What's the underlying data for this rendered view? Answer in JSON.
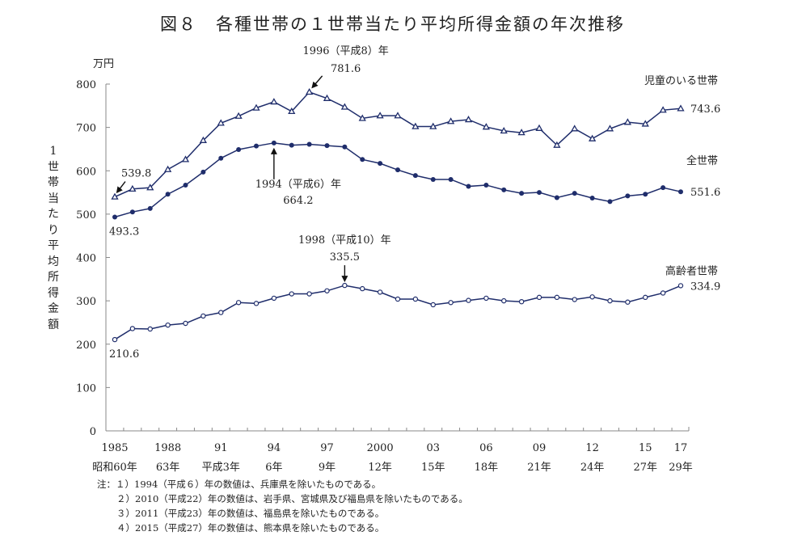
{
  "title": "図８　各種世帯の１世帯当たり平均所得金額の年次推移",
  "chart_data": {
    "type": "line",
    "title": "図８　各種世帯の１世帯当たり平均所得金額の年次推移",
    "ylabel": "１世帯当たり平均所得金額",
    "ylabel_chars": [
      "1",
      "世",
      "帯",
      "当",
      "た",
      "り",
      "平",
      "均",
      "所",
      "得",
      "金",
      "額"
    ],
    "yunit": "万円",
    "xlabel": "",
    "ylim": [
      0,
      800
    ],
    "yticks": [
      0,
      100,
      200,
      300,
      400,
      500,
      600,
      700,
      800
    ],
    "xlim": [
      1985,
      2017
    ],
    "x": [
      1985,
      1986,
      1987,
      1988,
      1989,
      1990,
      1991,
      1992,
      1993,
      1994,
      1995,
      1996,
      1997,
      1998,
      1999,
      2000,
      2001,
      2002,
      2003,
      2004,
      2005,
      2006,
      2007,
      2008,
      2009,
      2010,
      2011,
      2012,
      2013,
      2014,
      2015,
      2016,
      2017
    ],
    "xtick_labels": [
      {
        "year": 1985,
        "western": "1985",
        "japanese": "昭和60年"
      },
      {
        "year": 1988,
        "western": "1988",
        "japanese": "63年"
      },
      {
        "year": 1991,
        "western": "91",
        "japanese": "平成3年"
      },
      {
        "year": 1994,
        "western": "94",
        "japanese": "6年"
      },
      {
        "year": 1997,
        "western": "97",
        "japanese": "9年"
      },
      {
        "year": 2000,
        "western": "2000",
        "japanese": "12年"
      },
      {
        "year": 2003,
        "western": "03",
        "japanese": "15年"
      },
      {
        "year": 2006,
        "western": "06",
        "japanese": "18年"
      },
      {
        "year": 2009,
        "western": "09",
        "japanese": "21年"
      },
      {
        "year": 2012,
        "western": "12",
        "japanese": "24年"
      },
      {
        "year": 2015,
        "western": "15",
        "japanese": "27年"
      },
      {
        "year": 2017,
        "western": "17",
        "japanese": "29年"
      }
    ],
    "grid": false,
    "series": [
      {
        "name": "児童のいる世帯",
        "marker": "triangle-open",
        "color": "#1f2d6b",
        "values": [
          539.8,
          558,
          561,
          603,
          626,
          670,
          710,
          726,
          745,
          759,
          737,
          781.6,
          767,
          747,
          721,
          727,
          727,
          702,
          702,
          714,
          718,
          701,
          692,
          688,
          698,
          659,
          697,
          674,
          697,
          712,
          708,
          740,
          743.6
        ],
        "end_label": "743.6"
      },
      {
        "name": "全世帯",
        "marker": "circle-filled",
        "color": "#1f2d6b",
        "values": [
          493.3,
          505,
          513,
          546,
          567,
          597,
          629,
          649,
          657,
          664.2,
          659,
          661,
          658,
          655,
          626,
          617,
          602,
          589,
          580,
          580,
          564,
          567,
          556,
          548,
          550,
          538,
          548,
          537,
          529,
          542,
          546,
          561,
          551.6
        ],
        "end_label": "551.6"
      },
      {
        "name": "高齢者世帯",
        "marker": "circle-open",
        "color": "#1f2d6b",
        "values": [
          210.6,
          236,
          235,
          244,
          248,
          265,
          273,
          296,
          294,
          306,
          316,
          316,
          323,
          335.5,
          328,
          320,
          304,
          304,
          291,
          296,
          301,
          306,
          300,
          298,
          308,
          308,
          303,
          309,
          300,
          297,
          308,
          318,
          334.9
        ],
        "end_label": "334.9"
      }
    ],
    "annotations": [
      {
        "text": "539.8",
        "series": "児童のいる世帯",
        "year": 1985,
        "arrow": true
      },
      {
        "text": "493.3",
        "series": "全世帯",
        "year": 1985,
        "arrow": false
      },
      {
        "text": "210.6",
        "series": "高齢者世帯",
        "year": 1985,
        "arrow": false
      },
      {
        "line1": "1996（平成8）年",
        "line2": "781.6",
        "series": "児童のいる世帯",
        "year": 1996,
        "arrow": true
      },
      {
        "line1": "1994（平成6）年",
        "line2": "664.2",
        "series": "全世帯",
        "year": 1994,
        "arrow": true
      },
      {
        "line1": "1998（平成10）年",
        "line2": "335.5",
        "series": "高齢者世帯",
        "year": 1998,
        "arrow": true
      }
    ]
  },
  "notes": [
    "注：１）1994（平成６）年の数値は、兵庫県を除いたものである。",
    "２）2010（平成22）年の数値は、岩手県、宮城県及び福島県を除いたものである。",
    "３）2011（平成23）年の数値は、福島県を除いたものである。",
    "４）2015（平成27）年の数値は、熊本県を除いたものである。"
  ]
}
